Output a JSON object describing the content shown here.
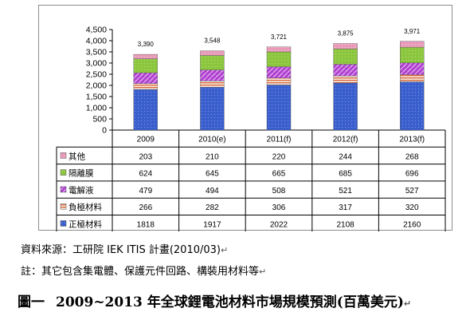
{
  "chart_data": {
    "type": "bar",
    "stacked": true,
    "categories": [
      "2009",
      "2010(e)",
      "2011(f)",
      "2012(f)",
      "2013(f)"
    ],
    "totals": [
      "3,390",
      "3,548",
      "3,721",
      "3,875",
      "3,971"
    ],
    "ylim": [
      0,
      4500
    ],
    "yticks": [
      "0",
      "500",
      "1,000",
      "1,500",
      "2,000",
      "2,500",
      "3,000",
      "3,500",
      "4,000",
      "4,500"
    ],
    "ytick_values": [
      0,
      500,
      1000,
      1500,
      2000,
      2500,
      3000,
      3500,
      4000,
      4500
    ],
    "series": [
      {
        "name": "正極材料",
        "values": [
          1818,
          1917,
          2022,
          2108,
          2160
        ],
        "color": "#3a5fcd"
      },
      {
        "name": "負極材料",
        "values": [
          266,
          282,
          306,
          317,
          320
        ],
        "color": "#e0663a"
      },
      {
        "name": "電解液",
        "values": [
          479,
          494,
          508,
          521,
          527
        ],
        "color": "#b040d0"
      },
      {
        "name": "隔離膜",
        "values": [
          624,
          645,
          665,
          685,
          696
        ],
        "color": "#8cc63f"
      },
      {
        "name": "其他",
        "values": [
          203,
          210,
          220,
          244,
          268
        ],
        "color": "#e89ab8"
      }
    ],
    "table_rows": [
      {
        "name": "其他",
        "values": [
          "203",
          "210",
          "220",
          "244",
          "268"
        ]
      },
      {
        "name": "隔離膜",
        "values": [
          "624",
          "645",
          "665",
          "685",
          "696"
        ]
      },
      {
        "name": "電解液",
        "values": [
          "479",
          "494",
          "508",
          "521",
          "527"
        ]
      },
      {
        "name": "負極材料",
        "values": [
          "266",
          "282",
          "306",
          "317",
          "320"
        ]
      },
      {
        "name": "正極材料",
        "values": [
          "1818",
          "1917",
          "2022",
          "2108",
          "2160"
        ]
      }
    ],
    "grid": false
  },
  "source": "資料來源：工研院 IEK ITIS 計畫(2010/03)",
  "note": "註：其它包含集電體、保護元件回路、構裝用材料等",
  "caption": {
    "label": "圖一",
    "text": "2009~2013 年全球鋰電池材料市場規模預測(百萬美元)"
  }
}
